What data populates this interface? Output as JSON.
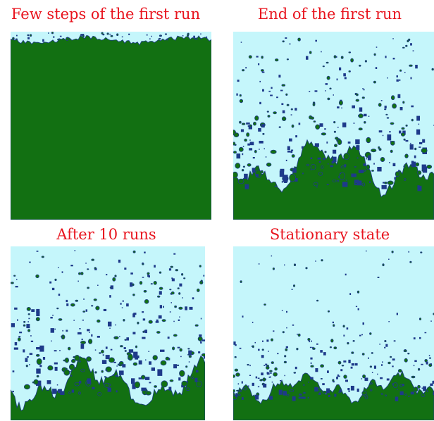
{
  "panels": [
    {
      "id": "few-steps",
      "title": "Few steps of the first run"
    },
    {
      "id": "end-first",
      "title": "End of the first run"
    },
    {
      "id": "after-10",
      "title": "After 10 runs"
    },
    {
      "id": "stationary",
      "title": "Stationary state"
    }
  ],
  "colors": {
    "title": "#e8141e",
    "fluid": "#c5f6fb",
    "solid": "#127012",
    "edge": "#1e3a8a"
  }
}
